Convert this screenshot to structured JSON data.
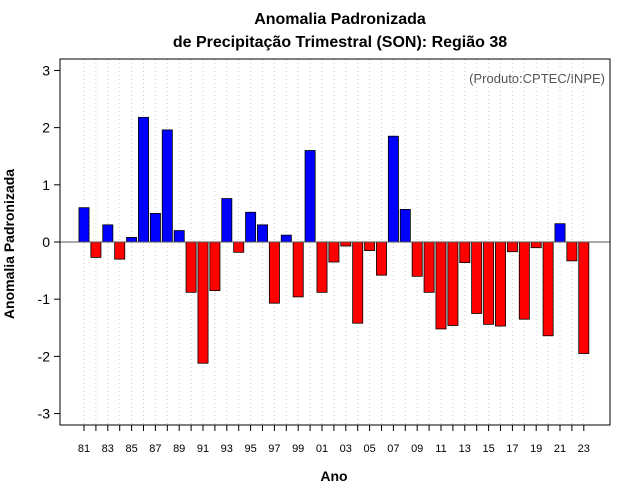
{
  "chart_data": {
    "type": "bar",
    "title_line1": "Anomalia Padronizada",
    "title_line2": "de Precipitação Trimestral (SON): Região 38",
    "xlabel": "Ano",
    "ylabel": "Anomalia Padronizada",
    "annotation": "(Produto:CPTEC/INPE)",
    "ylim": [
      -3.2,
      3.2
    ],
    "yticks": [
      -3,
      -2,
      -1,
      0,
      1,
      2,
      3
    ],
    "categories": [
      "81",
      "82",
      "83",
      "84",
      "85",
      "86",
      "87",
      "88",
      "89",
      "90",
      "91",
      "92",
      "93",
      "94",
      "95",
      "96",
      "97",
      "98",
      "99",
      "00",
      "01",
      "02",
      "03",
      "04",
      "05",
      "06",
      "07",
      "08",
      "09",
      "10",
      "11",
      "12",
      "13",
      "14",
      "15",
      "16",
      "17",
      "18",
      "19",
      "20",
      "21",
      "22",
      "23"
    ],
    "xtick_labels": [
      "81",
      "83",
      "85",
      "87",
      "89",
      "91",
      "93",
      "95",
      "97",
      "99",
      "01",
      "03",
      "05",
      "07",
      "09",
      "11",
      "13",
      "15",
      "17",
      "19",
      "21",
      "23"
    ],
    "values": [
      0.6,
      -0.27,
      0.3,
      -0.3,
      0.08,
      2.18,
      0.5,
      1.96,
      0.2,
      -0.88,
      -2.12,
      -0.85,
      0.76,
      -0.18,
      0.52,
      0.3,
      -1.07,
      0.12,
      -0.96,
      1.6,
      -0.88,
      -0.35,
      -0.07,
      -1.42,
      -0.15,
      -0.58,
      1.85,
      0.57,
      -0.6,
      -0.88,
      -1.52,
      -1.46,
      -0.36,
      -1.25,
      -1.44,
      -1.47,
      -0.17,
      -1.35,
      -0.1,
      -1.64,
      0.32,
      -0.33,
      -1.95
    ],
    "colors": {
      "positive": "#0000FF",
      "negative": "#FF0000",
      "axis": "#000000",
      "grid": "#CCCCCC",
      "zero_line": "#555555"
    }
  }
}
